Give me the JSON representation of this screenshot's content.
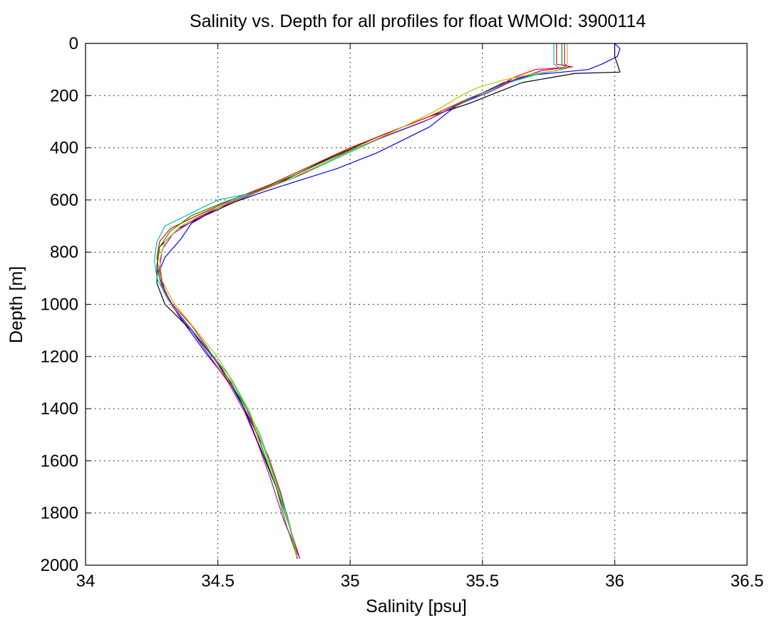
{
  "chart_data": {
    "type": "line",
    "title": "Salinity vs. Depth for all profiles for float WMOId: 3900114",
    "xlabel": "Salinity [psu]",
    "ylabel": "Depth [m]",
    "xlim": [
      34,
      36.5
    ],
    "ylim": [
      0,
      2000
    ],
    "y_reversed": true,
    "grid": true,
    "xticks": [
      34,
      34.5,
      35,
      35.5,
      36,
      36.5
    ],
    "xtick_labels": [
      "34",
      "34.5",
      "35",
      "35.5",
      "36",
      "36.5"
    ],
    "yticks": [
      0,
      200,
      400,
      600,
      800,
      1000,
      1200,
      1400,
      1600,
      1800,
      2000
    ],
    "ytick_labels": [
      "0",
      "200",
      "400",
      "600",
      "800",
      "1000",
      "1200",
      "1400",
      "1600",
      "1800",
      "2000"
    ],
    "series": [
      {
        "color": "#0000ff",
        "points": [
          [
            36.0,
            0
          ],
          [
            36.02,
            20
          ],
          [
            36.01,
            50
          ],
          [
            35.95,
            80
          ],
          [
            35.9,
            100
          ],
          [
            35.7,
            120
          ],
          [
            35.58,
            150
          ],
          [
            35.5,
            190
          ],
          [
            35.4,
            240
          ],
          [
            35.3,
            320
          ],
          [
            35.1,
            420
          ],
          [
            34.95,
            480
          ],
          [
            34.7,
            560
          ],
          [
            34.5,
            630
          ],
          [
            34.4,
            690
          ],
          [
            34.36,
            750
          ],
          [
            34.3,
            820
          ],
          [
            34.28,
            870
          ],
          [
            34.3,
            950
          ],
          [
            34.35,
            1040
          ],
          [
            34.45,
            1180
          ],
          [
            34.55,
            1310
          ],
          [
            34.6,
            1400
          ],
          [
            34.65,
            1500
          ],
          [
            34.7,
            1650
          ],
          [
            34.76,
            1800
          ],
          [
            34.8,
            1970
          ]
        ]
      },
      {
        "color": "#000000",
        "points": [
          [
            36.0,
            0
          ],
          [
            36.0,
            50
          ],
          [
            36.02,
            110
          ],
          [
            35.85,
            115
          ],
          [
            35.65,
            150
          ],
          [
            35.55,
            190
          ],
          [
            35.45,
            230
          ],
          [
            35.3,
            280
          ],
          [
            35.1,
            360
          ],
          [
            34.9,
            450
          ],
          [
            34.72,
            540
          ],
          [
            34.58,
            600
          ],
          [
            34.45,
            660
          ],
          [
            34.35,
            710
          ],
          [
            34.28,
            780
          ],
          [
            34.27,
            850
          ],
          [
            34.27,
            920
          ],
          [
            34.3,
            1000
          ],
          [
            34.4,
            1100
          ],
          [
            34.48,
            1200
          ],
          [
            34.55,
            1300
          ],
          [
            34.6,
            1400
          ],
          [
            34.66,
            1550
          ],
          [
            34.72,
            1700
          ],
          [
            34.77,
            1850
          ],
          [
            34.8,
            1975
          ]
        ]
      },
      {
        "color": "#ff0000",
        "points": [
          [
            35.78,
            0
          ],
          [
            35.78,
            80
          ],
          [
            35.84,
            90
          ],
          [
            35.7,
            100
          ],
          [
            35.62,
            130
          ],
          [
            35.55,
            170
          ],
          [
            35.45,
            210
          ],
          [
            35.3,
            280
          ],
          [
            35.15,
            340
          ],
          [
            35.0,
            400
          ],
          [
            34.85,
            470
          ],
          [
            34.7,
            540
          ],
          [
            34.55,
            600
          ],
          [
            34.42,
            660
          ],
          [
            34.32,
            710
          ],
          [
            34.28,
            760
          ],
          [
            34.27,
            820
          ],
          [
            34.28,
            900
          ],
          [
            34.32,
            990
          ],
          [
            34.4,
            1080
          ],
          [
            34.47,
            1180
          ],
          [
            34.53,
            1280
          ],
          [
            34.6,
            1380
          ],
          [
            34.64,
            1480
          ],
          [
            34.69,
            1580
          ],
          [
            34.74,
            1730
          ],
          [
            34.78,
            1880
          ],
          [
            34.81,
            1975
          ]
        ]
      },
      {
        "color": "#00a000",
        "points": [
          [
            35.8,
            0
          ],
          [
            35.8,
            80
          ],
          [
            35.82,
            95
          ],
          [
            35.75,
            110
          ],
          [
            35.64,
            130
          ],
          [
            35.55,
            170
          ],
          [
            35.45,
            210
          ],
          [
            35.3,
            290
          ],
          [
            35.12,
            360
          ],
          [
            34.95,
            430
          ],
          [
            34.8,
            500
          ],
          [
            34.66,
            560
          ],
          [
            34.52,
            610
          ],
          [
            34.4,
            660
          ],
          [
            34.32,
            720
          ],
          [
            34.28,
            780
          ],
          [
            34.27,
            860
          ],
          [
            34.29,
            940
          ],
          [
            34.34,
            1020
          ],
          [
            34.42,
            1120
          ],
          [
            34.5,
            1220
          ],
          [
            34.56,
            1320
          ],
          [
            34.62,
            1420
          ],
          [
            34.67,
            1560
          ],
          [
            34.72,
            1700
          ],
          [
            34.76,
            1850
          ],
          [
            34.8,
            1970
          ]
        ]
      },
      {
        "color": "#00bfbf",
        "points": [
          [
            35.77,
            0
          ],
          [
            35.77,
            80
          ],
          [
            35.8,
            100
          ],
          [
            35.7,
            120
          ],
          [
            35.6,
            150
          ],
          [
            35.52,
            190
          ],
          [
            35.42,
            230
          ],
          [
            35.28,
            300
          ],
          [
            35.1,
            370
          ],
          [
            34.95,
            440
          ],
          [
            34.8,
            510
          ],
          [
            34.65,
            570
          ],
          [
            34.5,
            600
          ],
          [
            34.4,
            650
          ],
          [
            34.3,
            700
          ],
          [
            34.27,
            760
          ],
          [
            34.26,
            830
          ],
          [
            34.27,
            900
          ],
          [
            34.31,
            980
          ],
          [
            34.38,
            1070
          ],
          [
            34.46,
            1170
          ],
          [
            34.54,
            1270
          ],
          [
            34.6,
            1380
          ],
          [
            34.66,
            1500
          ],
          [
            34.71,
            1650
          ],
          [
            34.76,
            1800
          ],
          [
            34.8,
            1960
          ]
        ]
      },
      {
        "color": "#c000c0",
        "points": [
          [
            35.81,
            0
          ],
          [
            35.81,
            80
          ],
          [
            35.83,
            90
          ],
          [
            35.72,
            105
          ],
          [
            35.62,
            140
          ],
          [
            35.54,
            180
          ],
          [
            35.44,
            220
          ],
          [
            35.3,
            290
          ],
          [
            35.12,
            360
          ],
          [
            34.96,
            430
          ],
          [
            34.82,
            500
          ],
          [
            34.68,
            555
          ],
          [
            34.54,
            610
          ],
          [
            34.42,
            670
          ],
          [
            34.33,
            730
          ],
          [
            34.29,
            790
          ],
          [
            34.28,
            860
          ],
          [
            34.29,
            930
          ],
          [
            34.33,
            1010
          ],
          [
            34.4,
            1100
          ],
          [
            34.47,
            1200
          ],
          [
            34.54,
            1300
          ],
          [
            34.6,
            1410
          ],
          [
            34.65,
            1530
          ],
          [
            34.7,
            1670
          ],
          [
            34.75,
            1830
          ],
          [
            34.81,
            1975
          ]
        ]
      },
      {
        "color": "#c0c000",
        "points": [
          [
            35.82,
            0
          ],
          [
            35.82,
            90
          ],
          [
            35.78,
            105
          ],
          [
            35.7,
            115
          ],
          [
            35.58,
            140
          ],
          [
            35.48,
            170
          ],
          [
            35.42,
            200
          ],
          [
            35.32,
            260
          ],
          [
            35.2,
            320
          ],
          [
            35.05,
            390
          ],
          [
            34.9,
            460
          ],
          [
            34.75,
            530
          ],
          [
            34.6,
            590
          ],
          [
            34.46,
            645
          ],
          [
            34.36,
            700
          ],
          [
            34.3,
            760
          ],
          [
            34.28,
            830
          ],
          [
            34.29,
            910
          ],
          [
            34.33,
            990
          ],
          [
            34.41,
            1090
          ],
          [
            34.49,
            1190
          ],
          [
            34.56,
            1300
          ],
          [
            34.62,
            1410
          ],
          [
            34.67,
            1540
          ],
          [
            34.72,
            1690
          ],
          [
            34.77,
            1850
          ],
          [
            34.8,
            1970
          ]
        ]
      }
    ]
  }
}
